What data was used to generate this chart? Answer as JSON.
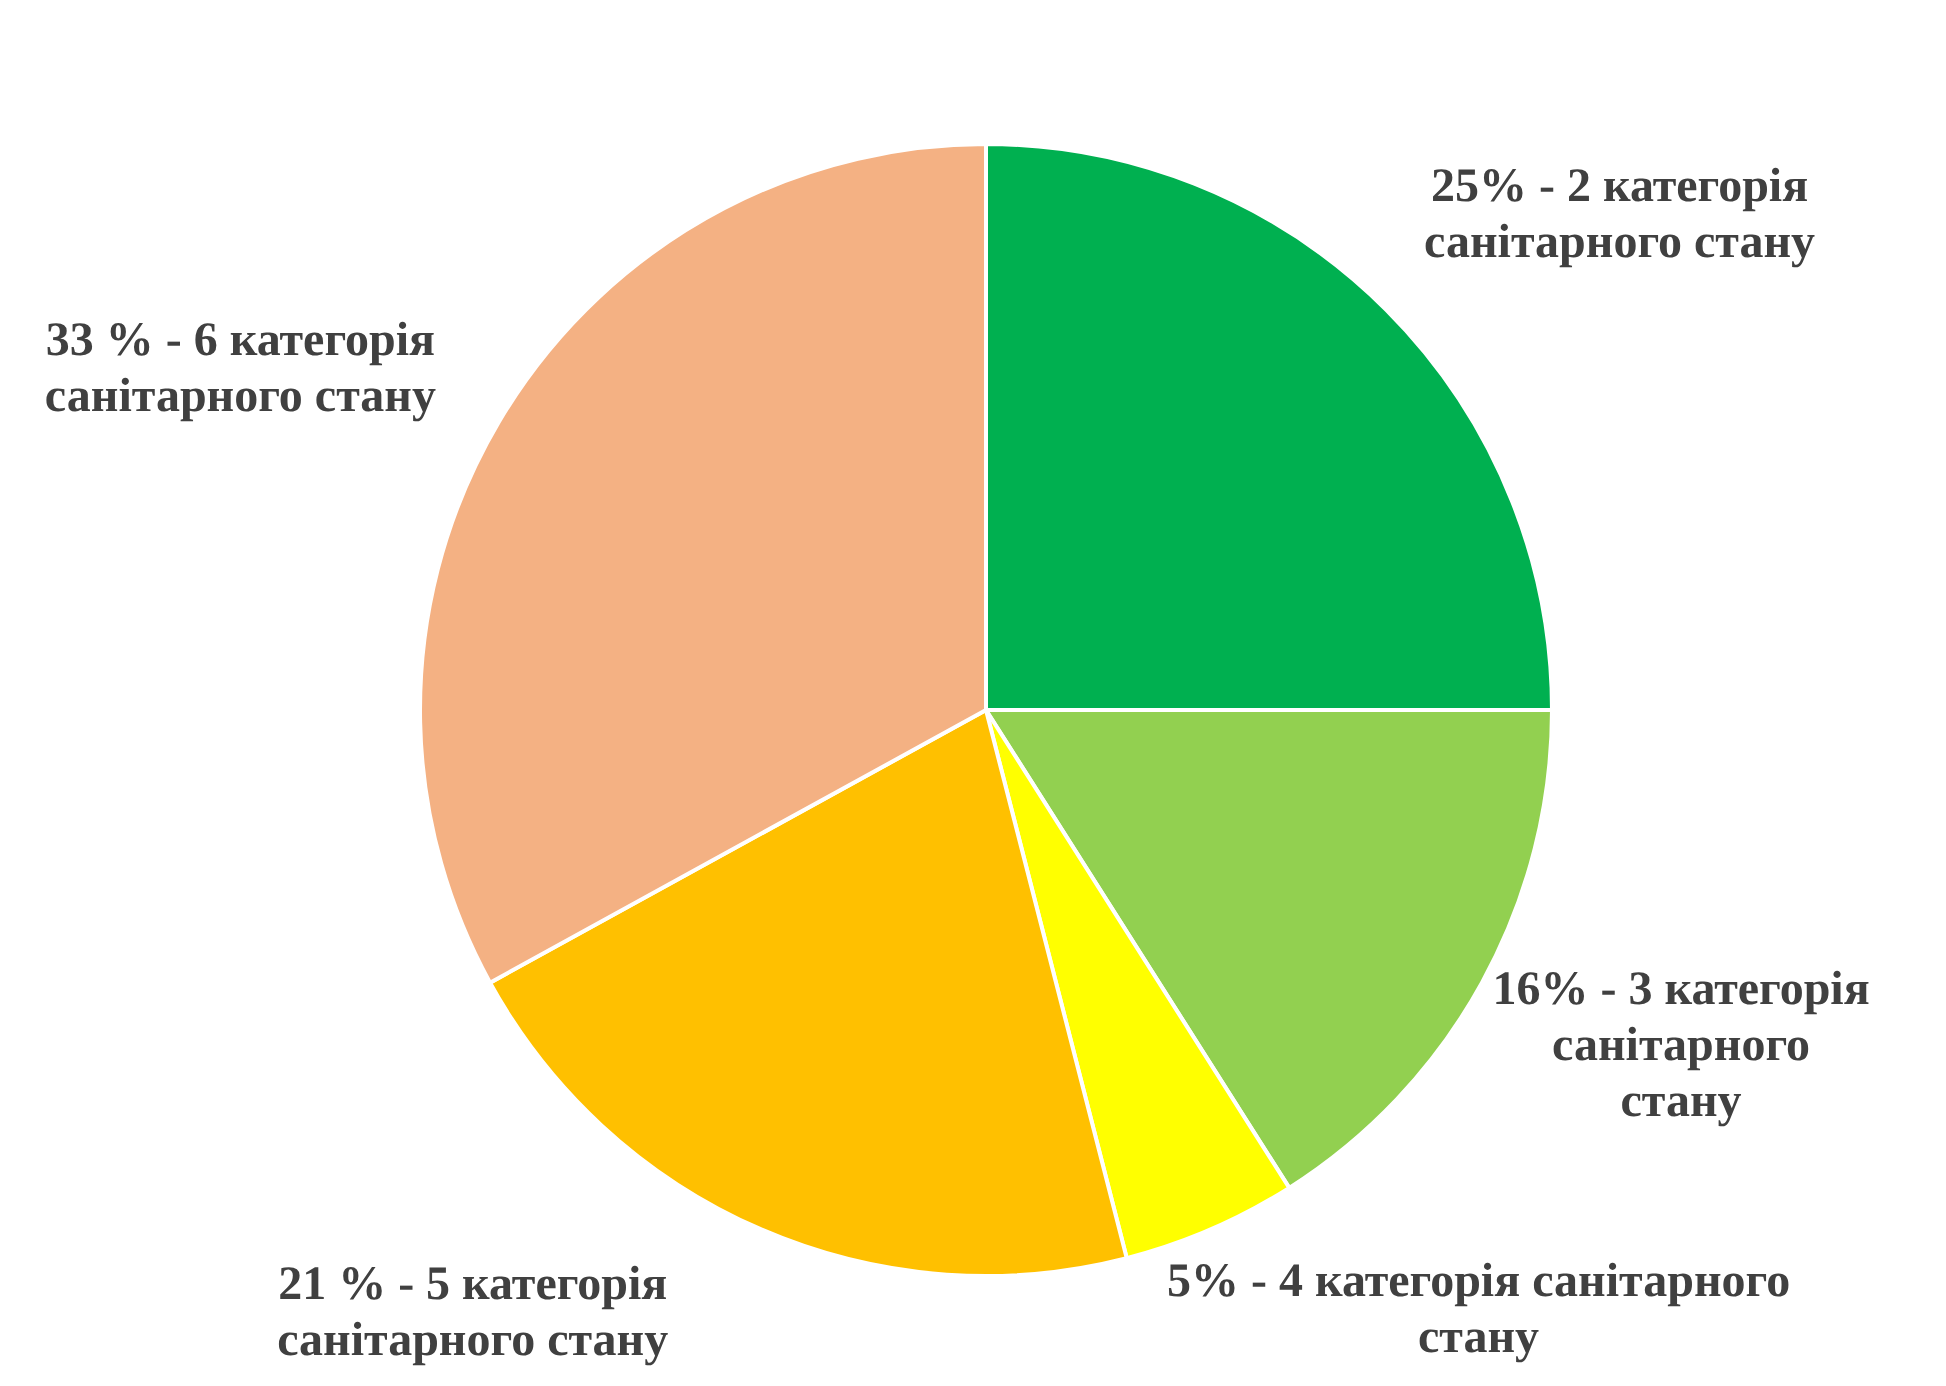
{
  "chart_data": {
    "type": "pie",
    "categories": [
      "25% - 2 категорія санітарного стану",
      "16% - 3 категорія санітарного стану",
      "5% - 4 категорія санітарного стану",
      "21 % - 5 категорія санітарного стану",
      "33 % - 6 категорія санітарного стану"
    ],
    "values": [
      25,
      16,
      5,
      21,
      33
    ],
    "colors": [
      "#00b050",
      "#92d050",
      "#ffff00",
      "#ffc000",
      "#f4b183"
    ]
  }
}
